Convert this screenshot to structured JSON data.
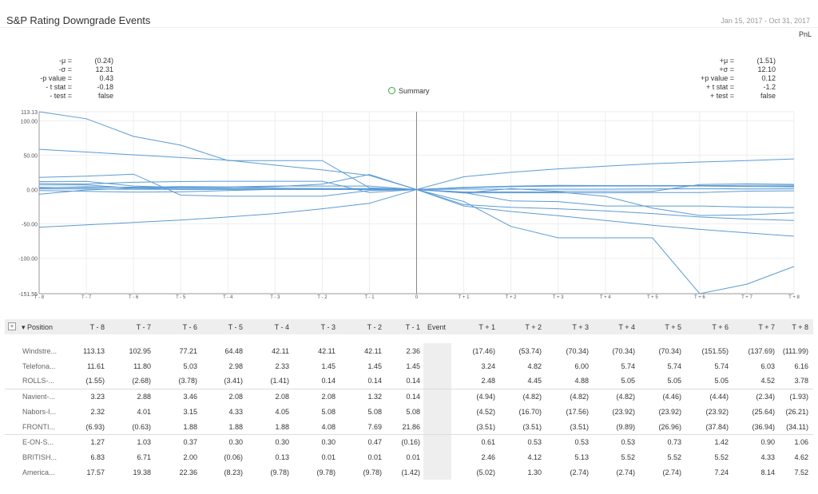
{
  "title": "S&P Rating Downgrade Events",
  "date_range": "Jan 15, 2017 - Oct 31, 2017",
  "pnl_label": "PnL",
  "summary_label": "Summary",
  "stats_left": [
    {
      "k": "-μ =",
      "v": "(0.24)"
    },
    {
      "k": "-σ =",
      "v": "12.31"
    },
    {
      "k": "-p value =",
      "v": "0.43"
    },
    {
      "k": "- t stat =",
      "v": "-0.18"
    },
    {
      "k": "- test =",
      "v": "false"
    }
  ],
  "stats_right": [
    {
      "k": "+μ =",
      "v": "(1.51)"
    },
    {
      "k": "+σ =",
      "v": "12.10"
    },
    {
      "k": "+p value =",
      "v": "0.12"
    },
    {
      "k": "+ t stat =",
      "v": "-1.2"
    },
    {
      "k": "+ test =",
      "v": "false"
    }
  ],
  "colors": {
    "line": "#5b9bd5",
    "axis": "#999999",
    "grid": "#eeeeee"
  },
  "chart_data": {
    "type": "line",
    "x": [
      "T - 8",
      "T - 7",
      "T - 6",
      "T - 5",
      "T - 4",
      "T - 3",
      "T - 2",
      "T - 1",
      "0",
      "T + 1",
      "T + 2",
      "T + 3",
      "T + 4",
      "T + 5",
      "T + 6",
      "T + 7",
      "T + 8"
    ],
    "y_ticks": [
      "113.13",
      "100.00",
      "50.00",
      "0.00",
      "-50.00",
      "-100.00",
      "-151.55"
    ],
    "ylim": [
      -151.55,
      113.13
    ],
    "grid": true,
    "series": [
      {
        "values": [
          113.13,
          102.95,
          77.21,
          64.48,
          42.11,
          42.11,
          42.11,
          2.36,
          0,
          -17.46,
          -53.74,
          -70.34,
          -70.34,
          -70.34,
          -151.55,
          -137.69,
          -111.99
        ]
      },
      {
        "values": [
          11.61,
          11.8,
          5.03,
          2.98,
          2.33,
          1.45,
          1.45,
          1.45,
          0,
          3.24,
          4.82,
          6.0,
          5.74,
          5.74,
          5.74,
          6.03,
          6.16
        ]
      },
      {
        "values": [
          -1.55,
          -2.68,
          -3.78,
          -3.41,
          -1.41,
          0.14,
          0.14,
          0.14,
          0,
          2.48,
          4.45,
          4.88,
          5.05,
          5.05,
          5.05,
          4.52,
          3.78
        ]
      },
      {
        "values": [
          3.23,
          2.88,
          3.46,
          2.08,
          2.08,
          2.08,
          1.32,
          0.14,
          0,
          -4.94,
          -4.82,
          -4.82,
          -4.82,
          -4.46,
          -4.44,
          -2.34,
          -1.93
        ]
      },
      {
        "values": [
          2.32,
          4.01,
          3.15,
          4.33,
          4.05,
          5.08,
          5.08,
          5.08,
          0,
          -4.52,
          -16.7,
          -17.56,
          -23.92,
          -23.92,
          -23.92,
          -25.64,
          -26.21
        ]
      },
      {
        "values": [
          -6.93,
          -0.63,
          1.88,
          1.88,
          1.88,
          4.08,
          7.69,
          21.86,
          0,
          -3.51,
          -3.51,
          -3.51,
          -9.89,
          -26.96,
          -37.84,
          -36.94,
          -34.11
        ]
      },
      {
        "values": [
          1.27,
          1.03,
          0.37,
          0.3,
          0.3,
          0.3,
          0.47,
          -0.16,
          0,
          0.61,
          0.53,
          0.53,
          0.53,
          0.73,
          1.42,
          0.9,
          1.06
        ]
      },
      {
        "values": [
          6.83,
          6.71,
          2.0,
          -0.06,
          0.13,
          0.01,
          0.01,
          0.01,
          0,
          2.46,
          4.12,
          5.13,
          5.52,
          5.52,
          5.52,
          4.33,
          4.62
        ]
      },
      {
        "values": [
          17.57,
          19.38,
          22.36,
          -8.23,
          -9.78,
          -9.78,
          -9.78,
          -1.42,
          0,
          -5.02,
          1.3,
          -2.74,
          -2.74,
          -2.74,
          7.24,
          8.14,
          7.52
        ]
      },
      {
        "values": [
          58.5,
          54.5,
          50.5,
          46.5,
          42.5,
          35.5,
          28.5,
          20.5,
          0,
          18.5,
          25.0,
          30.0,
          34.0,
          37.5,
          40.0,
          42.0,
          44.5
        ]
      },
      {
        "values": [
          -55.0,
          -51.5,
          -48.0,
          -44.5,
          -40.0,
          -35.0,
          -28.0,
          -20.0,
          0,
          -24.0,
          -32.0,
          -38.0,
          -45.0,
          -52.0,
          -58.0,
          -63.0,
          -68.0
        ]
      },
      {
        "values": [
          9.0,
          8.0,
          10.5,
          11.5,
          12.0,
          12.0,
          12.0,
          -4.5,
          0,
          -22.0,
          -26.0,
          -28.0,
          -31.0,
          -35.0,
          -40.0,
          -43.0,
          -45.0
        ]
      }
    ]
  },
  "table": {
    "expand_label": "+",
    "position_header": "▾ Position",
    "event_header": "Event",
    "headers": [
      "T - 8",
      "T - 7",
      "T - 6",
      "T - 5",
      "T - 4",
      "T - 3",
      "T - 2",
      "T - 1",
      "T + 1",
      "T + 2",
      "T + 3",
      "T + 4",
      "T + 5",
      "T + 6",
      "T + 7",
      "T + 8"
    ],
    "rows": [
      {
        "name": "Windstre...",
        "values": [
          "113.13",
          "102.95",
          "77.21",
          "64.48",
          "42.11",
          "42.11",
          "42.11",
          "2.36",
          "(17.46)",
          "(53.74)",
          "(70.34)",
          "(70.34)",
          "(70.34)",
          "(151.55)",
          "(137.69)",
          "(111.99)"
        ]
      },
      {
        "name": "Telefona...",
        "values": [
          "11.61",
          "11.80",
          "5.03",
          "2.98",
          "2.33",
          "1.45",
          "1.45",
          "1.45",
          "3.24",
          "4.82",
          "6.00",
          "5.74",
          "5.74",
          "5.74",
          "6.03",
          "6.16"
        ]
      },
      {
        "name": "ROLLS-...",
        "values": [
          "(1.55)",
          "(2.68)",
          "(3.78)",
          "(3.41)",
          "(1.41)",
          "0.14",
          "0.14",
          "0.14",
          "2.48",
          "4.45",
          "4.88",
          "5.05",
          "5.05",
          "5.05",
          "4.52",
          "3.78"
        ]
      },
      {
        "name": "Navient-...",
        "values": [
          "3.23",
          "2.88",
          "3.46",
          "2.08",
          "2.08",
          "2.08",
          "1.32",
          "0.14",
          "(4.94)",
          "(4.82)",
          "(4.82)",
          "(4.82)",
          "(4.46)",
          "(4.44)",
          "(2.34)",
          "(1.93)"
        ]
      },
      {
        "name": "Nabors-I...",
        "values": [
          "2.32",
          "4.01",
          "3.15",
          "4.33",
          "4.05",
          "5.08",
          "5.08",
          "5.08",
          "(4.52)",
          "(16.70)",
          "(17.56)",
          "(23.92)",
          "(23.92)",
          "(23.92)",
          "(25.64)",
          "(26.21)"
        ]
      },
      {
        "name": "FRONTI...",
        "values": [
          "(6.93)",
          "(0.63)",
          "1.88",
          "1.88",
          "1.88",
          "4.08",
          "7.69",
          "21.86",
          "(3.51)",
          "(3.51)",
          "(3.51)",
          "(9.89)",
          "(26.96)",
          "(37.84)",
          "(36.94)",
          "(34.11)"
        ]
      },
      {
        "name": "E-ON-S...",
        "values": [
          "1.27",
          "1.03",
          "0.37",
          "0.30",
          "0.30",
          "0.30",
          "0.47",
          "(0.16)",
          "0.61",
          "0.53",
          "0.53",
          "0.53",
          "0.73",
          "1.42",
          "0.90",
          "1.06"
        ]
      },
      {
        "name": "BRITISH...",
        "values": [
          "6.83",
          "6.71",
          "2.00",
          "(0.06)",
          "0.13",
          "0.01",
          "0.01",
          "0.01",
          "2.46",
          "4.12",
          "5.13",
          "5.52",
          "5.52",
          "5.52",
          "4.33",
          "4.62"
        ]
      },
      {
        "name": "America...",
        "values": [
          "17.57",
          "19.38",
          "22.36",
          "(8.23)",
          "(9.78)",
          "(9.78)",
          "(9.78)",
          "(1.42)",
          "(5.02)",
          "1.30",
          "(2.74)",
          "(2.74)",
          "(2.74)",
          "7.24",
          "8.14",
          "7.52"
        ]
      }
    ]
  }
}
